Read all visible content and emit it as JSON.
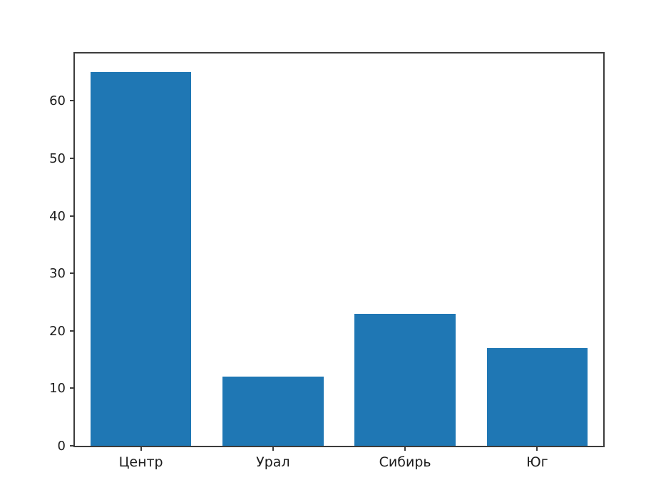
{
  "chart_data": {
    "type": "bar",
    "categories": [
      "Центр",
      "Урал",
      "Сибирь",
      "Юг"
    ],
    "values": [
      65,
      12,
      23,
      17
    ],
    "title": "",
    "xlabel": "",
    "ylabel": "",
    "yticks": [
      0,
      10,
      20,
      30,
      40,
      50,
      60
    ],
    "ylim": [
      0,
      68.25
    ],
    "grid": false,
    "legend": null,
    "bar_color": "#1f77b4",
    "spine_color": "#3c3c3c",
    "tick_label_color": "#1c1c1c",
    "background_color": "#ffffff"
  }
}
